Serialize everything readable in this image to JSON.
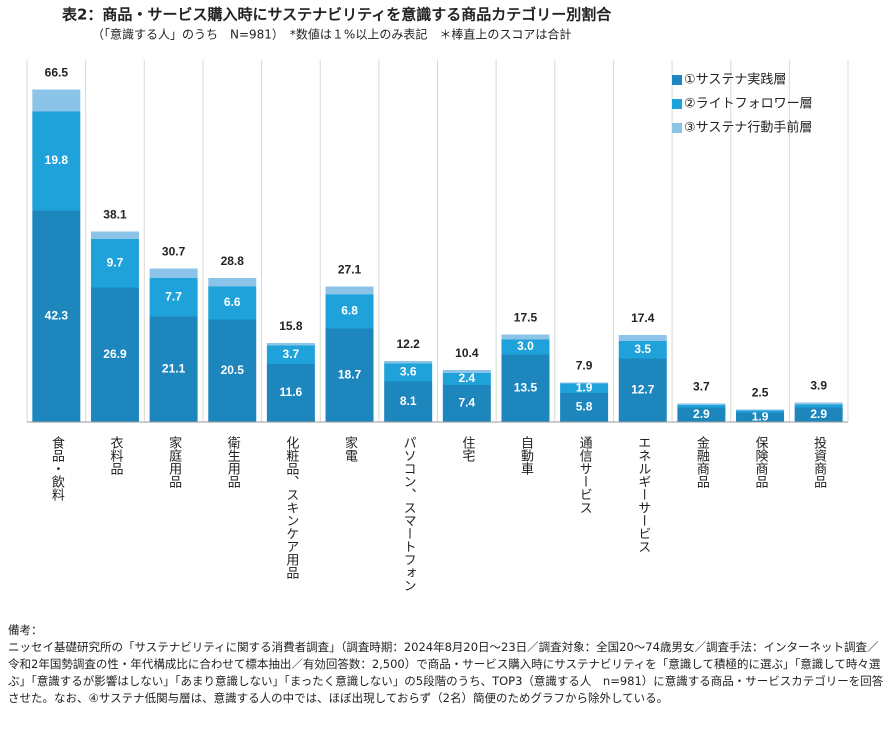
{
  "chart_data": {
    "type": "stacked_bar",
    "title": "表2：商品・サービス購入時にサステナビリティを意識する商品カテゴリー別割合",
    "subtitle": "（「意識する人」のうち　N=981）　*数値は１%以上のみ表記　＊棒直上のスコアは合計",
    "categories": [
      "食品・飲料",
      "衣料品",
      "家庭用品",
      "衛生用品",
      "化粧品、スキンケア用品",
      "家電",
      "パソコン、スマートフォン",
      "住宅",
      "自動車",
      "通信サービス",
      "エネルギーサービス",
      "金融商品",
      "保険商品",
      "投資商品"
    ],
    "totals": [
      66.5,
      38.1,
      30.7,
      28.8,
      15.8,
      27.1,
      12.2,
      10.4,
      17.5,
      7.9,
      17.4,
      3.7,
      2.5,
      3.9
    ],
    "series": [
      {
        "name": "①サステナ実践層",
        "color": "#1c86bd",
        "values": [
          42.3,
          26.9,
          21.1,
          20.5,
          11.6,
          18.7,
          8.1,
          7.4,
          13.5,
          5.8,
          12.7,
          2.9,
          1.9,
          2.9
        ],
        "value_labels": [
          "42.3",
          "26.9",
          "21.1",
          "20.5",
          "11.6",
          "18.7",
          "8.1",
          "7.4",
          "13.5",
          "5.8",
          "12.7",
          "2.9",
          "1.9",
          "2.9"
        ]
      },
      {
        "name": "②ライトフォロワー層",
        "color": "#1ea2d9",
        "values": [
          19.8,
          9.7,
          7.7,
          6.6,
          3.7,
          6.8,
          3.6,
          2.4,
          3.0,
          1.9,
          3.5,
          0.5,
          0.4,
          0.6
        ],
        "value_labels": [
          "19.8",
          "9.7",
          "7.7",
          "6.6",
          "3.7",
          "6.8",
          "3.6",
          "2.4",
          "3.0",
          "1.9",
          "3.5",
          null,
          null,
          null
        ]
      },
      {
        "name": "③サステナ行動手前層",
        "color": "#8cc3e8",
        "values": [
          4.4,
          1.5,
          1.9,
          1.7,
          0.5,
          1.6,
          0.5,
          0.6,
          1.0,
          0.2,
          1.2,
          0.3,
          0.2,
          0.4
        ]
      }
    ],
    "ylim": [
      0,
      70
    ],
    "legend": "top-right"
  },
  "notes": {
    "heading": "備考：",
    "text": "ニッセイ基礎研究所の「サステナビリティに関する消費者調査」（調査時期：2024年8月20日～23日／調査対象：全国20～74歳男女／調査手法：インターネット調査／令和2年国勢調査の性・年代構成比に合わせて標本抽出／有効回答数：2,500）で商品・サービス購入時にサステナビリティを「意識して積極的に選ぶ」「意識して時々選ぶ」「意識するが影響はしない」「あまり意識しない」「まったく意識しない」の5段階のうち、TOP3（意識する人　n=981）に意識する商品・サービスカテゴリーを回答させた。なお、④サステナ低関与層は、意識する人の中では、ほぼ出現しておらず（2名）簡便のためグラフから除外している。"
  }
}
